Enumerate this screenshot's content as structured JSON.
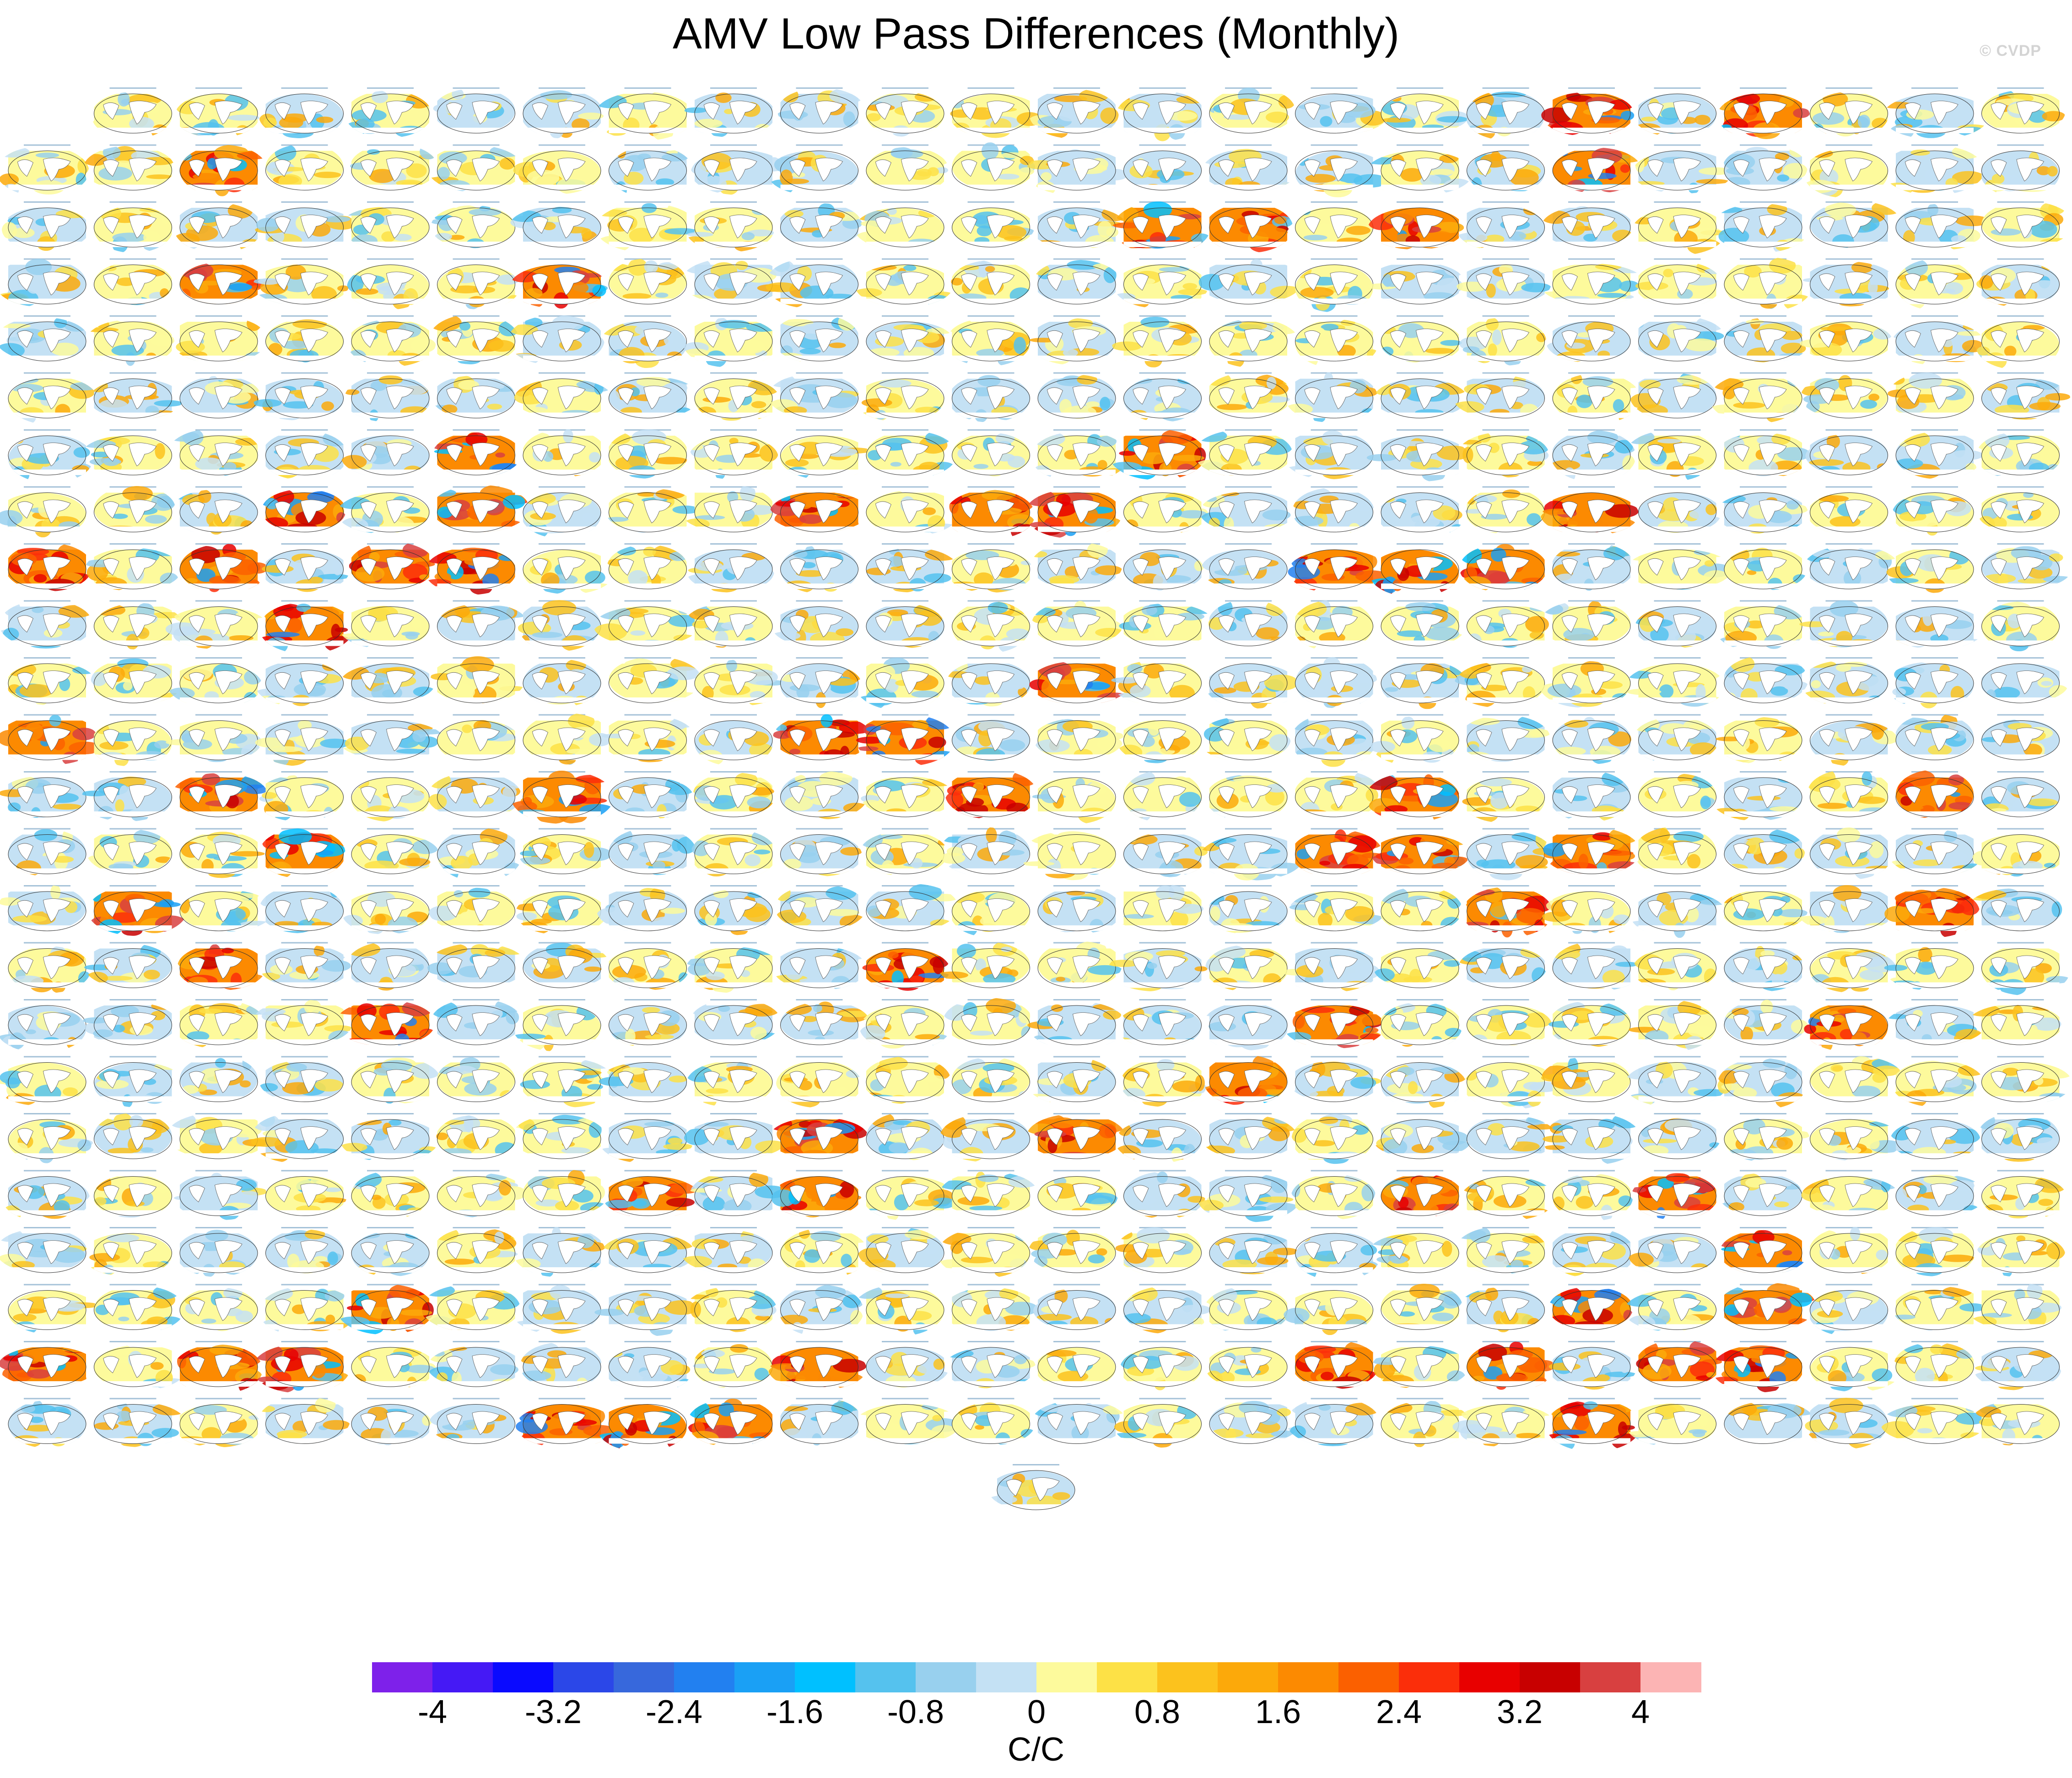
{
  "title": "AMV Low Pass Differences (Monthly)",
  "credit": "© CVDP",
  "grid": {
    "rows": 24,
    "columns": 24,
    "first_row_panels": 23,
    "extra_bottom_panels": 1,
    "panel_content": "global map of low pass AMV differences",
    "panel_header": "illegible model/run label"
  },
  "colorbar": {
    "units": "C/C",
    "tick_labels": [
      "-4",
      "-3.2",
      "-2.4",
      "-1.6",
      "-0.8",
      "0",
      "0.8",
      "1.6",
      "2.4",
      "3.2",
      "4"
    ],
    "colors": [
      "#7e21ea",
      "#4519f5",
      "#0a0aff",
      "#2b47e8",
      "#3768dc",
      "#2280f0",
      "#1aa0f5",
      "#00c0ff",
      "#55c2ee",
      "#98d0ee",
      "#c4e1f4",
      "#fdfa9c",
      "#fde146",
      "#fcc21d",
      "#fca90a",
      "#fc8a01",
      "#fb6000",
      "#fb2e0a",
      "#e80000",
      "#c80000",
      "#d84040",
      "#fcb4b4"
    ]
  }
}
